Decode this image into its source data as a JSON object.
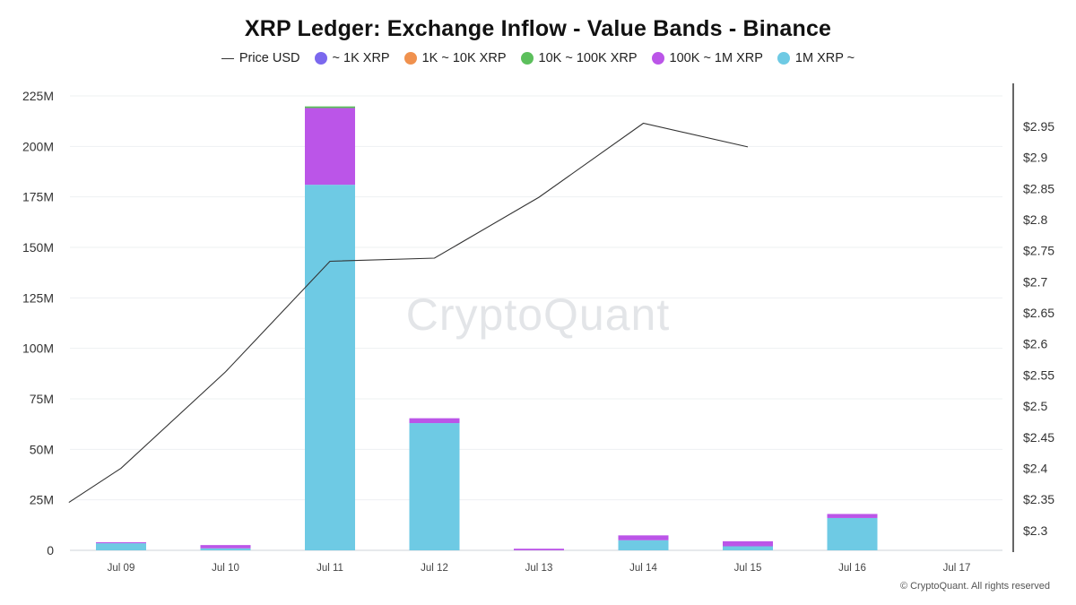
{
  "title": "XRP Ledger: Exchange Inflow - Value Bands - Binance",
  "watermark": "CryptoQuant",
  "copyright": "© CryptoQuant. All rights reserved",
  "legend": [
    {
      "label": "Price USD",
      "kind": "line",
      "color": "#333333"
    },
    {
      "label": "~ 1K XRP",
      "kind": "dot",
      "color": "#7b68ee"
    },
    {
      "label": "1K ~ 10K XRP",
      "kind": "dot",
      "color": "#f0914e"
    },
    {
      "label": "10K ~ 100K XRP",
      "kind": "dot",
      "color": "#5cbf5c"
    },
    {
      "label": "100K ~ 1M XRP",
      "kind": "dot",
      "color": "#bb55e8"
    },
    {
      "label": "1M XRP ~",
      "kind": "dot",
      "color": "#6ecae4"
    }
  ],
  "chart_data": {
    "type": "bar",
    "stacked": true,
    "categories": [
      "Jul 09",
      "Jul 10",
      "Jul 11",
      "Jul 12",
      "Jul 13",
      "Jul 14",
      "Jul 15",
      "Jul 16",
      "Jul 17"
    ],
    "series": [
      {
        "name": "1M XRP ~",
        "color": "#6ecae4",
        "values": [
          3.5,
          1.0,
          181,
          63,
          0,
          5,
          2,
          16,
          0
        ]
      },
      {
        "name": "100K ~ 1M XRP",
        "color": "#bb55e8",
        "values": [
          0.5,
          1.6,
          38,
          2.4,
          0.8,
          2.4,
          2.5,
          2.0,
          0
        ]
      },
      {
        "name": "10K ~ 100K XRP",
        "color": "#5cbf5c",
        "values": [
          0,
          0,
          0.8,
          0,
          0,
          0,
          0,
          0,
          0
        ]
      },
      {
        "name": "1K ~ 10K XRP",
        "color": "#f0914e",
        "values": [
          0,
          0,
          0,
          0,
          0,
          0,
          0,
          0,
          0
        ]
      },
      {
        "name": "~ 1K XRP",
        "color": "#7b68ee",
        "values": [
          0,
          0,
          0,
          0,
          0,
          0,
          0,
          0,
          0
        ]
      }
    ],
    "price_line": {
      "name": "Price USD",
      "color": "#333333",
      "points": [
        {
          "x": 8.5,
          "y": 2.345
        },
        {
          "x": 9,
          "y": 2.4
        },
        {
          "x": 10,
          "y": 2.555
        },
        {
          "x": 11,
          "y": 2.733
        },
        {
          "x": 12,
          "y": 2.738
        },
        {
          "x": 13,
          "y": 2.836
        },
        {
          "x": 14,
          "y": 2.955
        },
        {
          "x": 15,
          "y": 2.917
        }
      ]
    },
    "y_left": {
      "min": 0,
      "max": 225,
      "ticks": [
        0,
        25,
        50,
        75,
        100,
        125,
        150,
        175,
        200,
        225
      ],
      "tick_labels": [
        "0",
        "25M",
        "50M",
        "75M",
        "100M",
        "125M",
        "150M",
        "175M",
        "200M",
        "225M"
      ]
    },
    "y_right": {
      "min": 2.268,
      "max": 2.999,
      "ticks": [
        2.3,
        2.35,
        2.4,
        2.45,
        2.5,
        2.55,
        2.6,
        2.65,
        2.7,
        2.75,
        2.8,
        2.85,
        2.9,
        2.95
      ],
      "tick_labels": [
        "$2.3",
        "$2.35",
        "$2.4",
        "$2.45",
        "$2.5",
        "$2.55",
        "$2.6",
        "$2.65",
        "$2.7",
        "$2.75",
        "$2.8",
        "$2.85",
        "$2.9",
        "$2.95"
      ]
    },
    "grid": true
  }
}
